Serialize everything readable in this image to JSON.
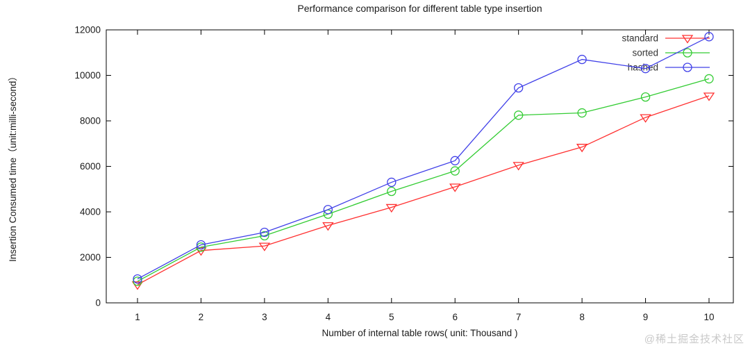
{
  "watermark": "@稀土掘金技术社区",
  "chart_data": {
    "type": "line",
    "title": "Performance comparison for different table type insertion",
    "xlabel": "Number of internal table rows( unit: Thousand )",
    "ylabel": "Insertion Consumed time（unit:milli-second）",
    "x": [
      1,
      2,
      3,
      4,
      5,
      6,
      7,
      8,
      9,
      10
    ],
    "xticks": [
      1,
      2,
      3,
      4,
      5,
      6,
      7,
      8,
      9,
      10
    ],
    "yticks": [
      0,
      2000,
      4000,
      6000,
      8000,
      10000,
      12000
    ],
    "xlim": [
      0.5,
      10.4
    ],
    "ylim": [
      0,
      12000
    ],
    "grid": false,
    "legend_position": "top-right-inside",
    "axis_color": "#000000",
    "text_color": "#1a1a1a",
    "legend_text_color": "#333333",
    "series": [
      {
        "name": "standard",
        "color": "#ff3030",
        "marker": "triangle-down-open",
        "values": [
          800,
          2300,
          2500,
          3400,
          4200,
          5100,
          6050,
          6850,
          8150,
          9100
        ]
      },
      {
        "name": "sorted",
        "color": "#33cc33",
        "marker": "circle-open",
        "values": [
          950,
          2450,
          2950,
          3900,
          4900,
          5800,
          8250,
          8350,
          9050,
          9850
        ]
      },
      {
        "name": "hashed",
        "color": "#4040e8",
        "marker": "circle-open",
        "values": [
          1050,
          2550,
          3100,
          4100,
          5300,
          6250,
          9450,
          10700,
          10300,
          11700
        ]
      }
    ]
  }
}
